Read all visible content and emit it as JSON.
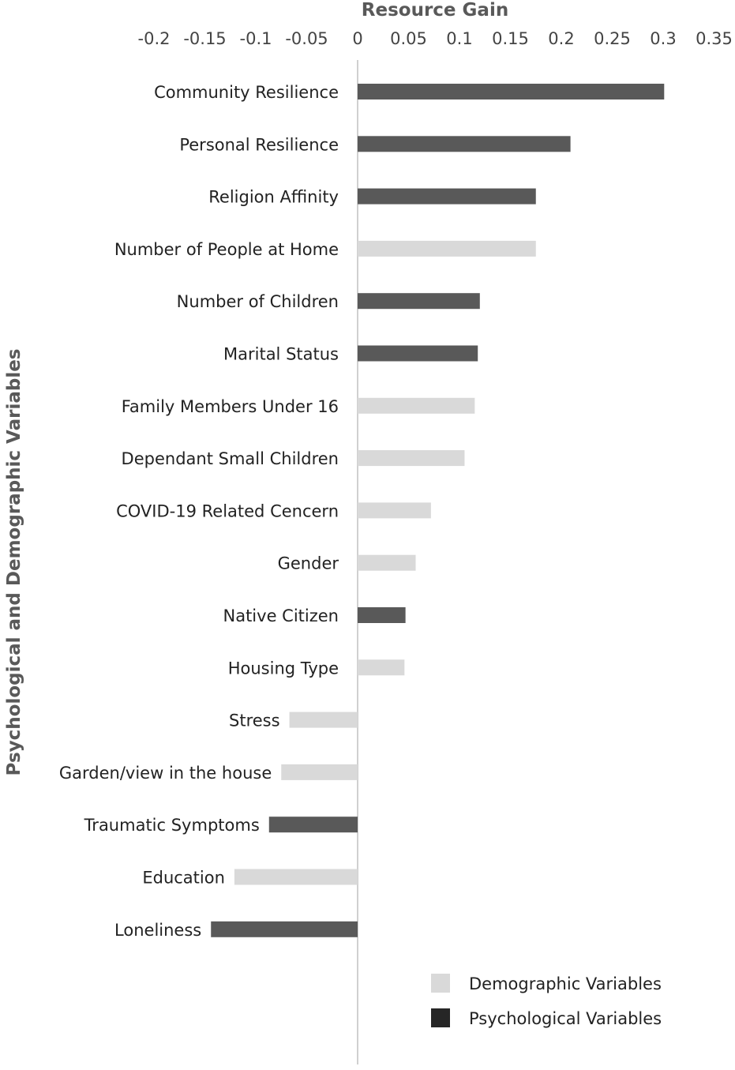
{
  "chart_data": {
    "type": "bar",
    "orientation": "horizontal",
    "xlabel": "Resource Gain",
    "ylabel": "Psychological and Demographic Variables",
    "xlim": [
      -0.2,
      0.35
    ],
    "xticks": [
      "-0.2",
      "-0.15",
      "-0.1",
      "-0.05",
      "0",
      "0.05",
      "0.1",
      "0.15",
      "0.2",
      "0.25",
      "0.3",
      "0.35"
    ],
    "xtick_values": [
      -0.2,
      -0.15,
      -0.1,
      -0.05,
      0,
      0.05,
      0.1,
      0.15,
      0.2,
      0.25,
      0.3,
      0.35
    ],
    "x_axis_position": "top",
    "grid": false,
    "legend_position": "bottom-right",
    "categories": [
      "Community Resilience",
      "Personal Resilience",
      "Religion Affinity",
      "Number of People at Home",
      "Number of Children",
      "Marital Status",
      "Family Members Under 16",
      "Dependant Small Children",
      "COVID-19 Related Cencern",
      "Gender",
      "Native Citizen",
      "Housing Type",
      "Stress",
      "Garden/view in the house",
      "Traumatic Symptoms",
      "Education",
      "Loneliness"
    ],
    "values": [
      0.301,
      0.209,
      0.175,
      0.175,
      0.12,
      0.118,
      0.115,
      0.105,
      0.072,
      0.057,
      0.047,
      0.046,
      -0.067,
      -0.075,
      -0.087,
      -0.121,
      -0.144
    ],
    "groups": [
      "Psychological Variables",
      "Psychological Variables",
      "Psychological Variables",
      "Demographic Variables",
      "Psychological Variables",
      "Psychological Variables",
      "Demographic Variables",
      "Demographic Variables",
      "Demographic Variables",
      "Demographic Variables",
      "Psychological Variables",
      "Demographic Variables",
      "Demographic Variables",
      "Demographic Variables",
      "Psychological Variables",
      "Demographic Variables",
      "Psychological Variables"
    ],
    "series": [
      {
        "name": "Demographic Variables",
        "color": "#d9d9d9",
        "legend_color": "#d9d9d9"
      },
      {
        "name": "Psychological Variables",
        "color": "#595959",
        "legend_color": "#262626"
      }
    ]
  }
}
